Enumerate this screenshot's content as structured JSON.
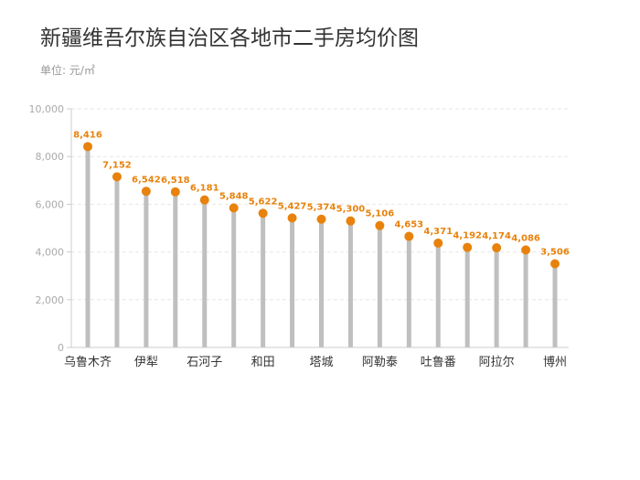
{
  "chart_data": {
    "type": "lollipop",
    "title": "新疆维吾尔族自治区各地市二手房均价图",
    "unit_label": "单位: 元/㎡",
    "ylim": [
      0,
      10000
    ],
    "yticks": [
      0,
      2000,
      4000,
      6000,
      8000,
      10000
    ],
    "ytick_labels": [
      "0",
      "2,000",
      "4,000",
      "6,000",
      "8,000",
      "10,000"
    ],
    "grid": "horizontal-dashed",
    "categories": [
      "乌鲁木齐",
      "",
      "伊犁",
      "",
      "石河子",
      "",
      "和田",
      "",
      "塔城",
      "",
      "阿勒泰",
      "",
      "吐鲁番",
      "",
      "阿拉尔",
      "",
      "博州"
    ],
    "values": [
      8416,
      7152,
      6542,
      6518,
      6181,
      5848,
      5622,
      5427,
      5374,
      5300,
      5106,
      4653,
      4371,
      4192,
      4174,
      4086,
      3506
    ],
    "value_labels": [
      "8,416",
      "7,152",
      "6,542",
      "6,518",
      "6,181",
      "5,848",
      "5,622",
      "5,427",
      "5,374",
      "5,300",
      "5,106",
      "4,653",
      "4,371",
      "4,192",
      "4,174",
      "4,086",
      "3,506"
    ],
    "colors": {
      "stem": "#bfbfbf",
      "dot": "#e8820c",
      "label": "#e8820c",
      "grid": "#e6e6e6",
      "axis": "#cccccc"
    }
  }
}
